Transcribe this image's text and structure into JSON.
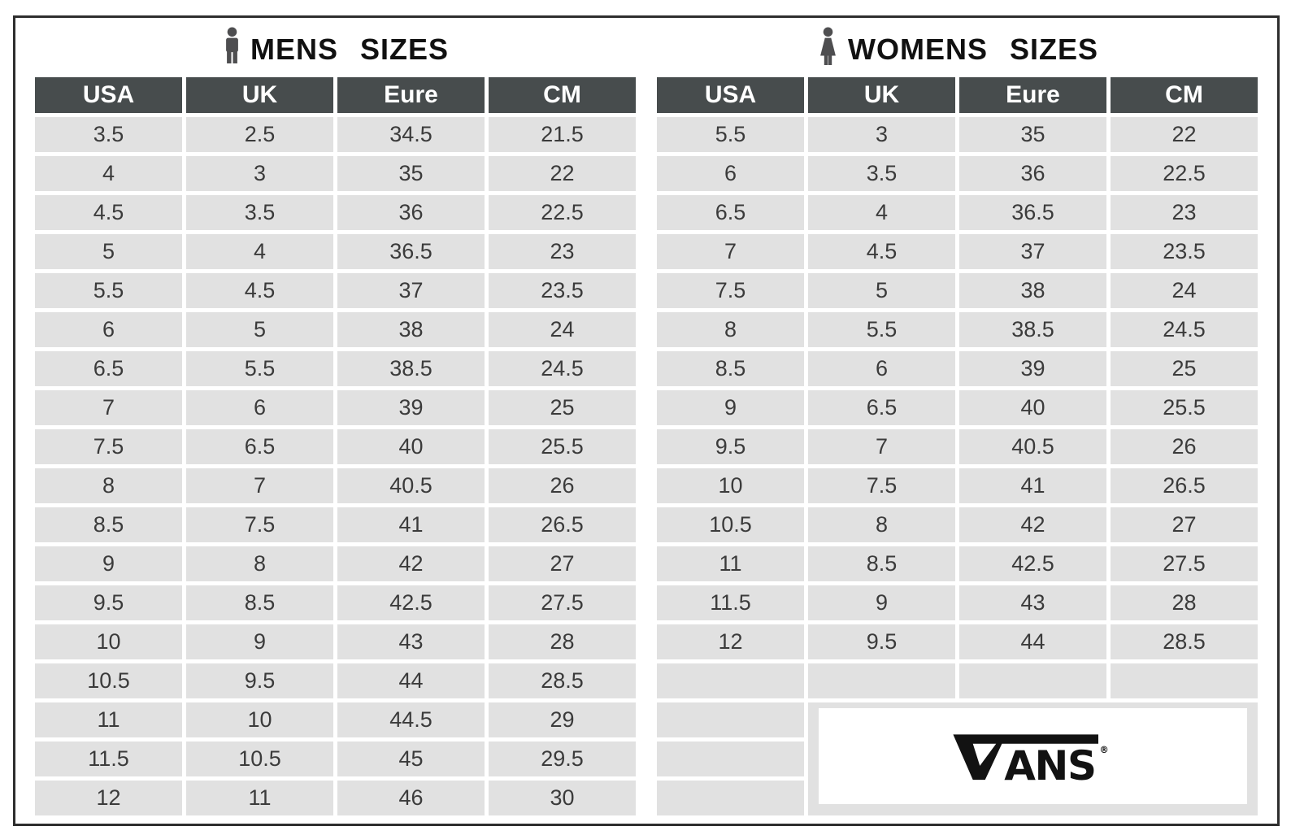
{
  "chart_data": [
    {
      "type": "table",
      "name": "mens_sizes",
      "title": "MENS SIZES",
      "icon": "man-icon",
      "columns": [
        "USA",
        "UK",
        "Eure",
        "CM"
      ],
      "rows": [
        [
          "3.5",
          "2.5",
          "34.5",
          "21.5"
        ],
        [
          "4",
          "3",
          "35",
          "22"
        ],
        [
          "4.5",
          "3.5",
          "36",
          "22.5"
        ],
        [
          "5",
          "4",
          "36.5",
          "23"
        ],
        [
          "5.5",
          "4.5",
          "37",
          "23.5"
        ],
        [
          "6",
          "5",
          "38",
          "24"
        ],
        [
          "6.5",
          "5.5",
          "38.5",
          "24.5"
        ],
        [
          "7",
          "6",
          "39",
          "25"
        ],
        [
          "7.5",
          "6.5",
          "40",
          "25.5"
        ],
        [
          "8",
          "7",
          "40.5",
          "26"
        ],
        [
          "8.5",
          "7.5",
          "41",
          "26.5"
        ],
        [
          "9",
          "8",
          "42",
          "27"
        ],
        [
          "9.5",
          "8.5",
          "42.5",
          "27.5"
        ],
        [
          "10",
          "9",
          "43",
          "28"
        ],
        [
          "10.5",
          "9.5",
          "44",
          "28.5"
        ],
        [
          "11",
          "10",
          "44.5",
          "29"
        ],
        [
          "11.5",
          "10.5",
          "45",
          "29.5"
        ],
        [
          "12",
          "11",
          "46",
          "30"
        ]
      ]
    },
    {
      "type": "table",
      "name": "womens_sizes",
      "title": "WOMENS SIZES",
      "icon": "woman-icon",
      "columns": [
        "USA",
        "UK",
        "Eure",
        "CM"
      ],
      "rows": [
        [
          "5.5",
          "3",
          "35",
          "22"
        ],
        [
          "6",
          "3.5",
          "36",
          "22.5"
        ],
        [
          "6.5",
          "4",
          "36.5",
          "23"
        ],
        [
          "7",
          "4.5",
          "37",
          "23.5"
        ],
        [
          "7.5",
          "5",
          "38",
          "24"
        ],
        [
          "8",
          "5.5",
          "38.5",
          "24.5"
        ],
        [
          "8.5",
          "6",
          "39",
          "25"
        ],
        [
          "9",
          "6.5",
          "40",
          "25.5"
        ],
        [
          "9.5",
          "7",
          "40.5",
          "26"
        ],
        [
          "10",
          "7.5",
          "41",
          "26.5"
        ],
        [
          "10.5",
          "8",
          "42",
          "27"
        ],
        [
          "11",
          "8.5",
          "42.5",
          "27.5"
        ],
        [
          "11.5",
          "9",
          "43",
          "28"
        ],
        [
          "12",
          "9.5",
          "44",
          "28.5"
        ]
      ],
      "empty_trailing_rows": 4
    }
  ],
  "logo": {
    "text": "VANS",
    "letters_after_v": "ANS",
    "registered_mark": "®"
  },
  "colors": {
    "header_bg": "#474c4d",
    "cell_bg": "#e1e1e1",
    "cell_text": "#3b3b3b",
    "frame_border": "#2e2e2e",
    "logo_black": "#121212",
    "icon_gray": "#4e4e50"
  }
}
